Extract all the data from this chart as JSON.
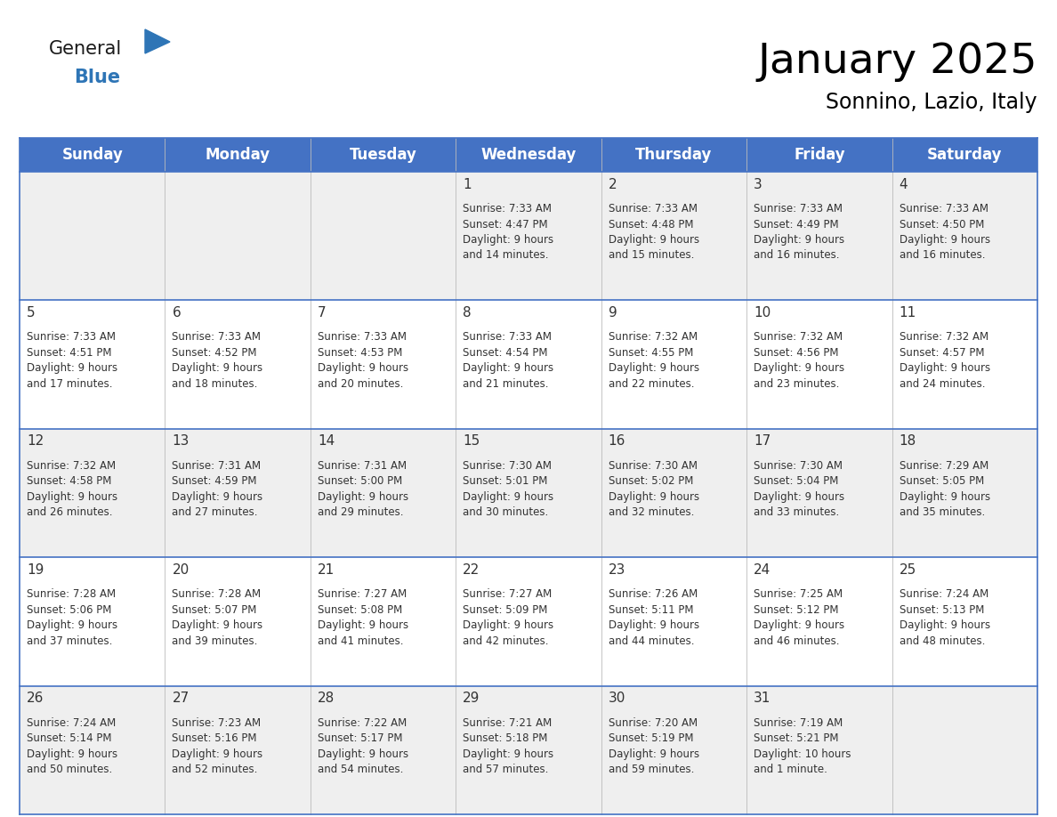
{
  "title": "January 2025",
  "subtitle": "Sonnino, Lazio, Italy",
  "days_of_week": [
    "Sunday",
    "Monday",
    "Tuesday",
    "Wednesday",
    "Thursday",
    "Friday",
    "Saturday"
  ],
  "header_bg": "#4472C4",
  "header_text_color": "#FFFFFF",
  "cell_bg_even": "#EFEFEF",
  "cell_bg_odd": "#FFFFFF",
  "border_color": "#4472C4",
  "text_color": "#333333",
  "title_fontsize": 34,
  "subtitle_fontsize": 17,
  "header_fontsize": 12,
  "day_num_fontsize": 11,
  "cell_fontsize": 8.5,
  "calendar_data": [
    [
      null,
      null,
      null,
      {
        "day": "1",
        "sunrise": "7:33 AM",
        "sunset": "4:47 PM",
        "daylight": "9 hours",
        "daylight2": "and 14 minutes."
      },
      {
        "day": "2",
        "sunrise": "7:33 AM",
        "sunset": "4:48 PM",
        "daylight": "9 hours",
        "daylight2": "and 15 minutes."
      },
      {
        "day": "3",
        "sunrise": "7:33 AM",
        "sunset": "4:49 PM",
        "daylight": "9 hours",
        "daylight2": "and 16 minutes."
      },
      {
        "day": "4",
        "sunrise": "7:33 AM",
        "sunset": "4:50 PM",
        "daylight": "9 hours",
        "daylight2": "and 16 minutes."
      }
    ],
    [
      {
        "day": "5",
        "sunrise": "7:33 AM",
        "sunset": "4:51 PM",
        "daylight": "9 hours",
        "daylight2": "and 17 minutes."
      },
      {
        "day": "6",
        "sunrise": "7:33 AM",
        "sunset": "4:52 PM",
        "daylight": "9 hours",
        "daylight2": "and 18 minutes."
      },
      {
        "day": "7",
        "sunrise": "7:33 AM",
        "sunset": "4:53 PM",
        "daylight": "9 hours",
        "daylight2": "and 20 minutes."
      },
      {
        "day": "8",
        "sunrise": "7:33 AM",
        "sunset": "4:54 PM",
        "daylight": "9 hours",
        "daylight2": "and 21 minutes."
      },
      {
        "day": "9",
        "sunrise": "7:32 AM",
        "sunset": "4:55 PM",
        "daylight": "9 hours",
        "daylight2": "and 22 minutes."
      },
      {
        "day": "10",
        "sunrise": "7:32 AM",
        "sunset": "4:56 PM",
        "daylight": "9 hours",
        "daylight2": "and 23 minutes."
      },
      {
        "day": "11",
        "sunrise": "7:32 AM",
        "sunset": "4:57 PM",
        "daylight": "9 hours",
        "daylight2": "and 24 minutes."
      }
    ],
    [
      {
        "day": "12",
        "sunrise": "7:32 AM",
        "sunset": "4:58 PM",
        "daylight": "9 hours",
        "daylight2": "and 26 minutes."
      },
      {
        "day": "13",
        "sunrise": "7:31 AM",
        "sunset": "4:59 PM",
        "daylight": "9 hours",
        "daylight2": "and 27 minutes."
      },
      {
        "day": "14",
        "sunrise": "7:31 AM",
        "sunset": "5:00 PM",
        "daylight": "9 hours",
        "daylight2": "and 29 minutes."
      },
      {
        "day": "15",
        "sunrise": "7:30 AM",
        "sunset": "5:01 PM",
        "daylight": "9 hours",
        "daylight2": "and 30 minutes."
      },
      {
        "day": "16",
        "sunrise": "7:30 AM",
        "sunset": "5:02 PM",
        "daylight": "9 hours",
        "daylight2": "and 32 minutes."
      },
      {
        "day": "17",
        "sunrise": "7:30 AM",
        "sunset": "5:04 PM",
        "daylight": "9 hours",
        "daylight2": "and 33 minutes."
      },
      {
        "day": "18",
        "sunrise": "7:29 AM",
        "sunset": "5:05 PM",
        "daylight": "9 hours",
        "daylight2": "and 35 minutes."
      }
    ],
    [
      {
        "day": "19",
        "sunrise": "7:28 AM",
        "sunset": "5:06 PM",
        "daylight": "9 hours",
        "daylight2": "and 37 minutes."
      },
      {
        "day": "20",
        "sunrise": "7:28 AM",
        "sunset": "5:07 PM",
        "daylight": "9 hours",
        "daylight2": "and 39 minutes."
      },
      {
        "day": "21",
        "sunrise": "7:27 AM",
        "sunset": "5:08 PM",
        "daylight": "9 hours",
        "daylight2": "and 41 minutes."
      },
      {
        "day": "22",
        "sunrise": "7:27 AM",
        "sunset": "5:09 PM",
        "daylight": "9 hours",
        "daylight2": "and 42 minutes."
      },
      {
        "day": "23",
        "sunrise": "7:26 AM",
        "sunset": "5:11 PM",
        "daylight": "9 hours",
        "daylight2": "and 44 minutes."
      },
      {
        "day": "24",
        "sunrise": "7:25 AM",
        "sunset": "5:12 PM",
        "daylight": "9 hours",
        "daylight2": "and 46 minutes."
      },
      {
        "day": "25",
        "sunrise": "7:24 AM",
        "sunset": "5:13 PM",
        "daylight": "9 hours",
        "daylight2": "and 48 minutes."
      }
    ],
    [
      {
        "day": "26",
        "sunrise": "7:24 AM",
        "sunset": "5:14 PM",
        "daylight": "9 hours",
        "daylight2": "and 50 minutes."
      },
      {
        "day": "27",
        "sunrise": "7:23 AM",
        "sunset": "5:16 PM",
        "daylight": "9 hours",
        "daylight2": "and 52 minutes."
      },
      {
        "day": "28",
        "sunrise": "7:22 AM",
        "sunset": "5:17 PM",
        "daylight": "9 hours",
        "daylight2": "and 54 minutes."
      },
      {
        "day": "29",
        "sunrise": "7:21 AM",
        "sunset": "5:18 PM",
        "daylight": "9 hours",
        "daylight2": "and 57 minutes."
      },
      {
        "day": "30",
        "sunrise": "7:20 AM",
        "sunset": "5:19 PM",
        "daylight": "9 hours",
        "daylight2": "and 59 minutes."
      },
      {
        "day": "31",
        "sunrise": "7:19 AM",
        "sunset": "5:21 PM",
        "daylight": "10 hours",
        "daylight2": "and 1 minute."
      },
      null
    ]
  ]
}
